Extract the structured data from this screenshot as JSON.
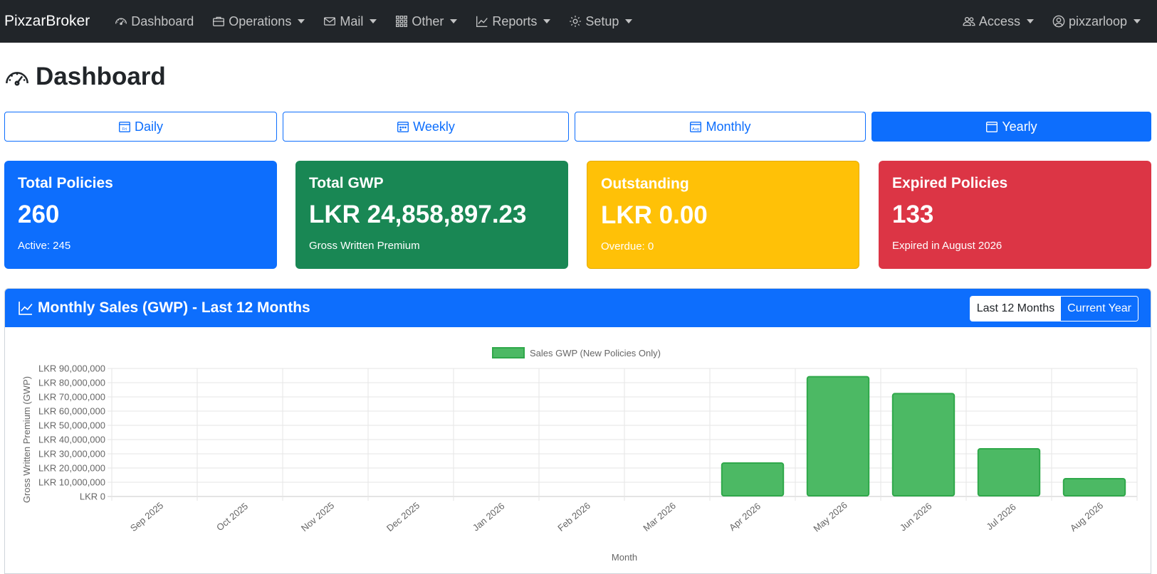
{
  "navbar": {
    "brand": "PixzarBroker",
    "items": [
      {
        "label": "Dashboard",
        "icon": "speedometer-icon"
      },
      {
        "label": "Operations",
        "icon": "briefcase-icon"
      },
      {
        "label": "Mail",
        "icon": "envelope-icon"
      },
      {
        "label": "Other",
        "icon": "grid-icon"
      },
      {
        "label": "Reports",
        "icon": "chart-line-icon"
      },
      {
        "label": "Setup",
        "icon": "gear-icon"
      }
    ],
    "right_items": [
      {
        "label": "Access",
        "icon": "people-icon"
      },
      {
        "label": "pixzarloop",
        "icon": "user-circle-icon"
      }
    ]
  },
  "page": {
    "title": "Dashboard"
  },
  "periods": [
    {
      "label": "Daily",
      "icon_text": "Fri",
      "active": false
    },
    {
      "label": "Weekly",
      "icon_text": "",
      "active": false
    },
    {
      "label": "Monthly",
      "icon_text": "Aug",
      "active": false
    },
    {
      "label": "Yearly",
      "icon_text": "",
      "active": true
    }
  ],
  "cards": [
    {
      "title": "Total Policies",
      "value": "260",
      "sub": "Active: 245",
      "color": "#0d6efd"
    },
    {
      "title": "Total GWP",
      "value": "LKR 24,858,897.23",
      "sub": "Gross Written Premium",
      "color": "#198754"
    },
    {
      "title": "Outstanding",
      "value": "LKR 0.00",
      "sub": "Overdue: 0",
      "color": "#ffc107"
    },
    {
      "title": "Expired Policies",
      "value": "133",
      "sub": "Expired in August 2026",
      "color": "#dc3545"
    }
  ],
  "panel": {
    "title": "Monthly Sales (GWP) - Last 12 Months",
    "toggle": [
      "Last 12 Months",
      "Current Year"
    ],
    "toggle_active": "Last 12 Months"
  },
  "chart_data": {
    "type": "bar",
    "categories": [
      "Sep 2025",
      "Oct 2025",
      "Nov 2025",
      "Dec 2025",
      "Jan 2026",
      "Feb 2026",
      "Mar 2026",
      "Apr 2026",
      "May 2026",
      "Jun 2026",
      "Jul 2026",
      "Aug 2026"
    ],
    "series": [
      {
        "name": "Sales GWP (New Policies Only)",
        "values": [
          0,
          0,
          0,
          0,
          0,
          0,
          0,
          23500000,
          84200000,
          72300000,
          33500000,
          12500000
        ],
        "color": "#4cb964"
      }
    ],
    "xlabel": "Month",
    "ylabel": "Gross Written Premium (GWP)",
    "ylim": [
      0,
      90000000
    ],
    "yticks": [
      "LKR 0",
      "LKR 10,000,000",
      "LKR 20,000,000",
      "LKR 30,000,000",
      "LKR 40,000,000",
      "LKR 50,000,000",
      "LKR 60,000,000",
      "LKR 70,000,000",
      "LKR 80,000,000",
      "LKR 90,000,000"
    ],
    "grid": true,
    "legend_position": "top"
  }
}
